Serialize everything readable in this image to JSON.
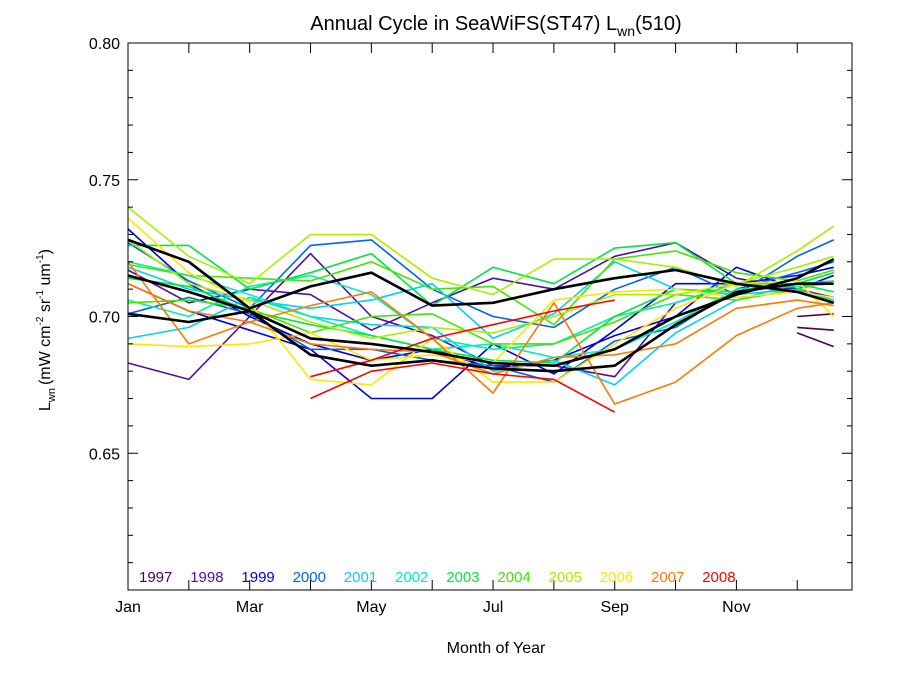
{
  "chart_data": {
    "type": "line",
    "title": "Annual Cycle in SeaWiFS(ST47) L",
    "title_sub": "wn",
    "title_tail": "(510)",
    "xlabel": "Month of Year",
    "ylabel_main": "L",
    "ylabel_sub": "wn",
    "ylabel_units": "(mW cm",
    "ylabel_units_sup1": "-2",
    "ylabel_units_mid1": " sr",
    "ylabel_units_sup2": "-1",
    "ylabel_units_mid2": " um",
    "ylabel_units_sup3": "-1",
    "ylabel_units_end": ")",
    "xlim": [
      1,
      12.9
    ],
    "ylim": [
      0.6,
      0.8
    ],
    "xticks": [
      {
        "value": 1,
        "label": "Jan"
      },
      {
        "value": 3,
        "label": "Mar"
      },
      {
        "value": 5,
        "label": "May"
      },
      {
        "value": 7,
        "label": "Jul"
      },
      {
        "value": 9,
        "label": "Sep"
      },
      {
        "value": 11,
        "label": "Nov"
      }
    ],
    "yticks": [
      {
        "value": 0.65,
        "label": "0.65"
      },
      {
        "value": 0.7,
        "label": "0.70"
      },
      {
        "value": 0.75,
        "label": "0.75"
      },
      {
        "value": 0.8,
        "label": "0.80"
      }
    ],
    "grid": false,
    "legend_position": "bottom-left inside",
    "x": [
      1,
      2,
      3,
      4,
      5,
      6,
      7,
      8,
      9,
      10,
      11,
      12,
      12.6
    ],
    "series": [
      {
        "name": "1997",
        "color": "#4b0055",
        "values": [
          null,
          null,
          null,
          null,
          null,
          null,
          null,
          null,
          null,
          null,
          null,
          0.7,
          0.701
        ]
      },
      {
        "name": "1997",
        "color": "#4b0055",
        "values": [
          null,
          null,
          null,
          null,
          null,
          null,
          null,
          null,
          null,
          null,
          null,
          0.696,
          0.695
        ]
      },
      {
        "name": "1997",
        "color": "#4b0055",
        "values": [
          null,
          null,
          null,
          null,
          null,
          null,
          null,
          null,
          null,
          null,
          null,
          0.694,
          0.689
        ]
      },
      {
        "name": "1998",
        "color": "#4e0fa8",
        "values": [
          0.683,
          0.677,
          0.7,
          0.723,
          0.7,
          0.693,
          0.682,
          0.682,
          0.678,
          0.705,
          0.712,
          0.71,
          0.705
        ]
      },
      {
        "name": "1998",
        "color": "#4e0fa8",
        "values": [
          0.717,
          0.705,
          0.71,
          0.708,
          0.695,
          0.705,
          0.714,
          0.71,
          0.722,
          0.727,
          0.714,
          0.71,
          0.707
        ]
      },
      {
        "name": "1999",
        "color": "#0000e0",
        "values": [
          0.712,
          0.702,
          0.695,
          0.688,
          0.67,
          0.67,
          0.69,
          0.679,
          0.695,
          0.712,
          0.712,
          0.715,
          0.718
        ]
      },
      {
        "name": "1999",
        "color": "#0000e0",
        "values": [
          0.732,
          0.712,
          0.7,
          0.69,
          0.684,
          0.688,
          0.681,
          0.684,
          0.693,
          0.7,
          0.718,
          0.71,
          0.715
        ]
      },
      {
        "name": "2000",
        "color": "#0064f0",
        "values": [
          0.727,
          0.713,
          0.703,
          0.726,
          0.728,
          0.71,
          0.7,
          0.696,
          0.71,
          0.718,
          0.708,
          0.722,
          0.728
        ]
      },
      {
        "name": "2000",
        "color": "#0064f0",
        "values": [
          0.701,
          0.707,
          0.701,
          0.688,
          0.688,
          0.684,
          0.682,
          0.676,
          0.691,
          0.696,
          0.71,
          0.716,
          0.72
        ]
      },
      {
        "name": "2001",
        "color": "#00d2f0",
        "values": [
          0.692,
          0.696,
          0.707,
          0.7,
          0.697,
          0.696,
          0.68,
          0.684,
          0.675,
          0.694,
          0.706,
          0.712,
          0.713
        ]
      },
      {
        "name": "2001",
        "color": "#00d2f0",
        "values": [
          0.718,
          0.71,
          0.706,
          0.703,
          0.706,
          0.712,
          0.692,
          0.701,
          0.72,
          0.71,
          0.708,
          0.71,
          0.706
        ]
      },
      {
        "name": "2002",
        "color": "#00f0b4",
        "values": [
          0.706,
          0.7,
          0.711,
          0.715,
          0.708,
          0.692,
          0.688,
          0.69,
          0.7,
          0.705,
          0.712,
          0.709,
          0.706
        ]
      },
      {
        "name": "2002",
        "color": "#00f0b4",
        "values": [
          0.72,
          0.715,
          0.708,
          0.7,
          0.693,
          0.688,
          0.69,
          0.685,
          0.688,
          0.698,
          0.71,
          0.711,
          0.712
        ]
      },
      {
        "name": "2003",
        "color": "#00e640",
        "values": [
          0.726,
          0.726,
          0.71,
          0.716,
          0.723,
          0.704,
          0.718,
          0.712,
          0.725,
          0.727,
          0.712,
          0.712,
          0.709
        ]
      },
      {
        "name": "2003",
        "color": "#00e640",
        "values": [
          0.714,
          0.711,
          0.702,
          0.697,
          0.693,
          0.688,
          0.684,
          0.683,
          0.7,
          0.71,
          0.709,
          0.712,
          0.716
        ]
      },
      {
        "name": "2004",
        "color": "#40e800",
        "values": [
          0.719,
          0.715,
          0.714,
          0.713,
          0.72,
          0.71,
          0.711,
          0.697,
          0.721,
          0.724,
          0.716,
          0.713,
          0.717
        ]
      },
      {
        "name": "2004",
        "color": "#40e800",
        "values": [
          0.705,
          0.706,
          0.703,
          0.694,
          0.7,
          0.701,
          0.69,
          0.69,
          0.698,
          0.708,
          0.706,
          0.71,
          0.713
        ]
      },
      {
        "name": "2005",
        "color": "#a8f000",
        "values": [
          0.74,
          0.722,
          0.712,
          0.73,
          0.73,
          0.714,
          0.708,
          0.721,
          0.721,
          0.718,
          0.711,
          0.724,
          0.733
        ]
      },
      {
        "name": "2005",
        "color": "#a8f000",
        "values": [
          0.728,
          0.712,
          0.706,
          0.698,
          0.692,
          0.696,
          0.694,
          0.7,
          0.708,
          0.708,
          0.712,
          0.718,
          0.722
        ]
      },
      {
        "name": "2006",
        "color": "#ffe600",
        "values": [
          0.736,
          0.716,
          0.705,
          0.677,
          0.675,
          0.692,
          0.676,
          0.676,
          0.69,
          0.703,
          0.712,
          0.713,
          0.7
        ]
      },
      {
        "name": "2006",
        "color": "#ffe600",
        "values": [
          0.69,
          0.689,
          0.69,
          0.694,
          0.684,
          0.686,
          0.683,
          0.706,
          0.709,
          0.71,
          0.707,
          0.709,
          0.707
        ]
      },
      {
        "name": "2007",
        "color": "#ff7800",
        "values": [
          0.72,
          0.69,
          0.698,
          0.704,
          0.709,
          0.692,
          0.672,
          0.705,
          0.668,
          0.676,
          0.693,
          0.703,
          0.705
        ]
      },
      {
        "name": "2007",
        "color": "#ff7800",
        "values": [
          0.712,
          0.702,
          0.698,
          0.69,
          0.688,
          0.687,
          0.679,
          0.685,
          0.686,
          0.69,
          0.703,
          0.706,
          0.704
        ]
      },
      {
        "name": "2008",
        "color": "#ff0000",
        "values": [
          null,
          null,
          null,
          0.67,
          0.68,
          0.683,
          0.679,
          0.677,
          0.665,
          null,
          null,
          null,
          null
        ]
      },
      {
        "name": "2008",
        "color": "#ff0000",
        "values": [
          null,
          null,
          null,
          0.678,
          0.684,
          0.692,
          0.697,
          0.702,
          0.706,
          null,
          null,
          null,
          null
        ]
      },
      {
        "name": "",
        "color": "#000000",
        "width": 2.6,
        "values": [
          0.728,
          0.72,
          0.703,
          0.711,
          0.716,
          0.704,
          0.705,
          0.71,
          0.714,
          0.717,
          0.712,
          0.709,
          0.705
        ]
      },
      {
        "name": "",
        "color": "#000000",
        "width": 2.6,
        "values": [
          0.715,
          0.709,
          0.702,
          0.692,
          0.69,
          0.687,
          0.683,
          0.682,
          0.688,
          0.7,
          0.708,
          0.714,
          0.721
        ]
      },
      {
        "name": "",
        "color": "#000000",
        "width": 2.6,
        "values": [
          0.701,
          0.698,
          0.702,
          0.686,
          0.682,
          0.684,
          0.681,
          0.68,
          0.682,
          0.697,
          0.709,
          0.712,
          0.712
        ]
      }
    ],
    "legend": [
      {
        "label": "1997",
        "color": "#4b0055"
      },
      {
        "label": "1998",
        "color": "#4e0fa8"
      },
      {
        "label": "1999",
        "color": "#0000e0"
      },
      {
        "label": "2000",
        "color": "#0064f0"
      },
      {
        "label": "2001",
        "color": "#00d2f0"
      },
      {
        "label": "2002",
        "color": "#00f0b4"
      },
      {
        "label": "2003",
        "color": "#00e640"
      },
      {
        "label": "2004",
        "color": "#40e800"
      },
      {
        "label": "2005",
        "color": "#a8f000"
      },
      {
        "label": "2006",
        "color": "#ffe600"
      },
      {
        "label": "2007",
        "color": "#ff7800"
      },
      {
        "label": "2008",
        "color": "#ff0000"
      }
    ]
  }
}
